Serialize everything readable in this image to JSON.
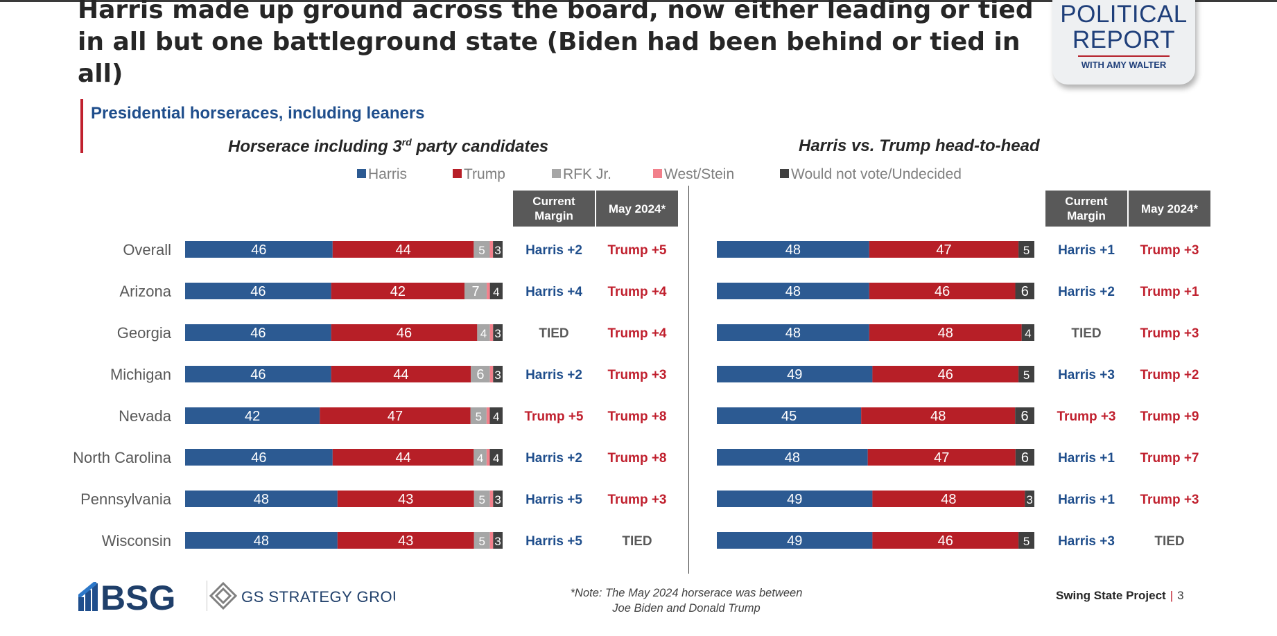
{
  "title": "Harris made up ground across the board, now either leading or tied in all but one battleground state (Biden had been behind or tied in all)",
  "logo": {
    "line1": "POLITICAL",
    "line2": "REPORT",
    "line3": "WITH AMY WALTER"
  },
  "subtitle": "Presidential horseraces, including leaners",
  "panels": {
    "left_title_pre": "Horserace including 3",
    "left_title_sup": "rd",
    "left_title_post": " party candidates",
    "right_title": "Harris vs. Trump head-to-head"
  },
  "legend": [
    {
      "label": "Harris",
      "color": "#2c5a92"
    },
    {
      "label": "Trump",
      "color": "#b71f27"
    },
    {
      "label": "RFK Jr.",
      "color": "#a6a6a6"
    },
    {
      "label": "West/Stein",
      "color": "#f2808b"
    },
    {
      "label": "Would not vote/Undecided",
      "color": "#404040"
    }
  ],
  "column_headers": {
    "current": "Current Margin",
    "may": "May 2024*"
  },
  "colors": {
    "harris": "#2c5a92",
    "trump": "#b71f27",
    "rfk": "#a6a6a6",
    "weststein": "#f2808b",
    "undecided": "#404040",
    "margin_harris": "#1f4e8c",
    "margin_trump": "#c0202e",
    "margin_tied": "#595959"
  },
  "chart_data": [
    {
      "type": "bar",
      "stacked": true,
      "orientation": "horizontal",
      "title": "Horserace including 3rd party candidates",
      "categories": [
        "Overall",
        "Arizona",
        "Georgia",
        "Michigan",
        "Nevada",
        "North Carolina",
        "Pennsylvania",
        "Wisconsin"
      ],
      "series": [
        {
          "name": "Harris",
          "values": [
            46,
            46,
            46,
            46,
            42,
            46,
            48,
            48
          ]
        },
        {
          "name": "Trump",
          "values": [
            44,
            42,
            46,
            44,
            47,
            44,
            43,
            43
          ]
        },
        {
          "name": "RFK Jr.",
          "values": [
            5,
            7,
            4,
            6,
            5,
            4,
            5,
            5
          ]
        },
        {
          "name": "West/Stein",
          "values": [
            1,
            1,
            1,
            1,
            1,
            1,
            1,
            1
          ]
        },
        {
          "name": "Would not vote/Undecided",
          "values": [
            3,
            4,
            3,
            3,
            4,
            4,
            3,
            3
          ]
        }
      ],
      "current_margin": [
        "Harris +2",
        "Harris +4",
        "TIED",
        "Harris +2",
        "Trump +5",
        "Harris +2",
        "Harris +5",
        "Harris +5"
      ],
      "may_2024": [
        "Trump +5",
        "Trump +4",
        "Trump +4",
        "Trump +3",
        "Trump +8",
        "Trump +8",
        "Trump +3",
        "TIED"
      ]
    },
    {
      "type": "bar",
      "stacked": true,
      "orientation": "horizontal",
      "title": "Harris vs. Trump head-to-head",
      "categories": [
        "Overall",
        "Arizona",
        "Georgia",
        "Michigan",
        "Nevada",
        "North Carolina",
        "Pennsylvania",
        "Wisconsin"
      ],
      "series": [
        {
          "name": "Harris",
          "values": [
            48,
            48,
            48,
            49,
            45,
            48,
            49,
            49
          ]
        },
        {
          "name": "Trump",
          "values": [
            47,
            46,
            48,
            46,
            48,
            47,
            48,
            46
          ]
        },
        {
          "name": "Would not vote/Undecided",
          "values": [
            5,
            6,
            4,
            5,
            6,
            6,
            3,
            5
          ]
        }
      ],
      "current_margin": [
        "Harris +1",
        "Harris +2",
        "TIED",
        "Harris +3",
        "Trump +3",
        "Harris +1",
        "Harris +1",
        "Harris +3"
      ],
      "may_2024": [
        "Trump +3",
        "Trump +1",
        "Trump +3",
        "Trump +2",
        "Trump +9",
        "Trump +7",
        "Trump +3",
        "TIED"
      ]
    }
  ],
  "footer": {
    "bsg": "BSG",
    "gs": "GS STRATEGY GROUP",
    "note_line1": "*Note: The May 2024 horserace was between",
    "note_line2": "Joe Biden and Donald Trump",
    "project": "Swing State Project",
    "separator": "|",
    "page": "3"
  }
}
